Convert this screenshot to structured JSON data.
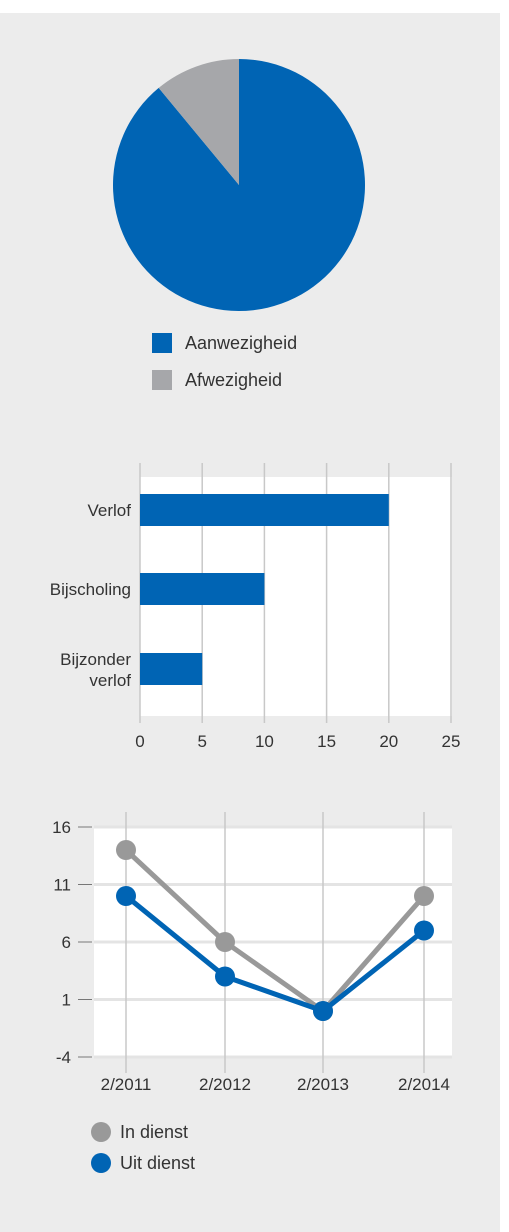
{
  "colors": {
    "blue": "#0064b4",
    "gray": "#a6a7aa",
    "line_gray": "#999999",
    "grid": "#c8c8c8",
    "text": "#333333"
  },
  "chart_data": [
    {
      "type": "pie",
      "slices": [
        {
          "label": "Aanwezigheid",
          "value": 89,
          "color": "#0064b4"
        },
        {
          "label": "Afwezigheid",
          "value": 11,
          "color": "#a6a7aa"
        }
      ],
      "legend": "below"
    },
    {
      "type": "bar",
      "orientation": "horizontal",
      "categories": [
        [
          "Verlof"
        ],
        [
          "Bijscholing"
        ],
        [
          "Bijzonder",
          "verlof"
        ]
      ],
      "values": [
        20,
        10,
        5
      ],
      "color": "#0064b4",
      "xlim": [
        0,
        25
      ],
      "xticks": [
        "0",
        "5",
        "10",
        "15",
        "20",
        "25"
      ],
      "grid": "vertical"
    },
    {
      "type": "line",
      "x": [
        "2/2011",
        "2/2012",
        "2/2013",
        "2/2014"
      ],
      "ylim": [
        -4,
        16
      ],
      "yticks": [
        "16",
        "11",
        "6",
        "1",
        "-4"
      ],
      "series": [
        {
          "name": "In dienst",
          "values": [
            14,
            6,
            0,
            10
          ],
          "color": "#999999"
        },
        {
          "name": "Uit dienst",
          "values": [
            10,
            3,
            0,
            7
          ],
          "color": "#0064b4"
        }
      ],
      "legend": "bottom-left",
      "grid": "both"
    }
  ]
}
